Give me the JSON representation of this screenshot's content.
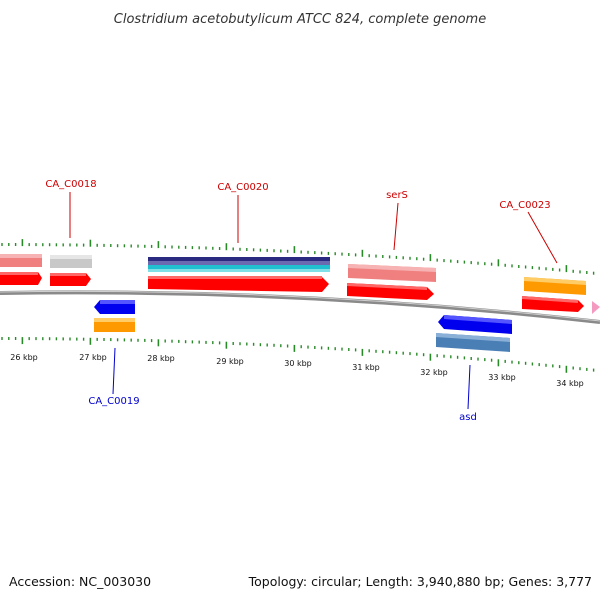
{
  "title": "Clostridium acetobutylicum ATCC 824, complete genome",
  "footer": {
    "accession": "Accession: NC_003030",
    "summary": "Topology: circular; Length: 3,940,880 bp; Genes: 3,777"
  },
  "colors": {
    "backbone": "#8a8a8a",
    "tick": "#2a8a2a",
    "label_forward": "#cc0000",
    "label_reverse": "#0000cc",
    "cds_red": "#ff0000",
    "cds_pink": "#f08080",
    "cds_grey": "#c8c8c8",
    "cds_orange": "#ff9900",
    "cds_blue": "#0000ee",
    "cds_steel": "#4a7fb5"
  },
  "scale": {
    "unit": "kbp",
    "labels": [
      "26 kbp",
      "27 kbp",
      "28 kbp",
      "29 kbp",
      "30 kbp",
      "31 kbp",
      "32 kbp",
      "33 kbp",
      "34 kbp"
    ]
  },
  "gene_labels": [
    {
      "text": "CA_C0018",
      "strand": "forward"
    },
    {
      "text": "CA_C0020",
      "strand": "forward"
    },
    {
      "text": "serS",
      "strand": "forward"
    },
    {
      "text": "CA_C0023",
      "strand": "forward"
    },
    {
      "text": "CA_C0019",
      "strand": "reverse"
    },
    {
      "text": "asd",
      "strand": "reverse"
    }
  ]
}
